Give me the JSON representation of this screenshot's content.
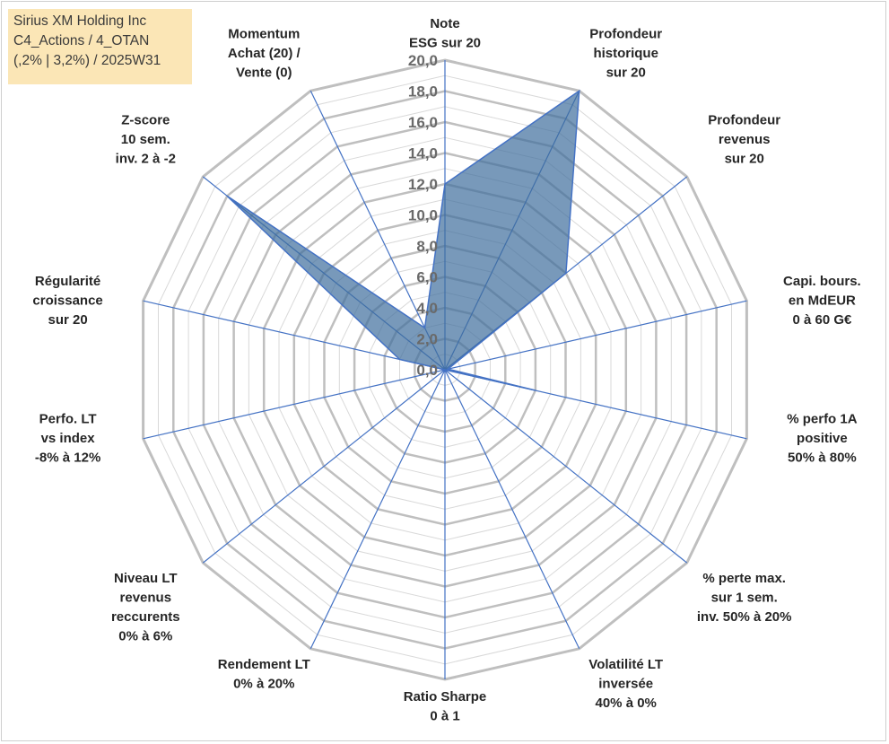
{
  "title_lines": [
    "Sirius XM Holding Inc",
    "C4_Actions / 4_OTAN",
    "(,2% | 3,2%) / 2025W31"
  ],
  "chart_data": {
    "type": "radar",
    "title": "Sirius XM Holding Inc",
    "rmin": 0,
    "rmax": 20,
    "tick_step": 2,
    "grid": true,
    "tick_labels": [
      "0,0",
      "2,0",
      "4,0",
      "6,0",
      "8,0",
      "10,0",
      "12,0",
      "14,0",
      "16,0",
      "18,0",
      "20,0"
    ],
    "axes": [
      {
        "label": [
          "Note",
          "ESG sur 20"
        ],
        "value": 12.0
      },
      {
        "label": [
          "Profondeur",
          "historique",
          "sur 20"
        ],
        "value": 20.0
      },
      {
        "label": [
          "Profondeur",
          "revenus",
          "sur 20"
        ],
        "value": 10.0
      },
      {
        "label": [
          "Capi. bours.",
          "en MdEUR",
          "0 à 60 G€"
        ],
        "value": 0.2
      },
      {
        "label": [
          "% perfo 1A",
          "positive",
          "50% à 80%"
        ],
        "value": 6.0
      },
      {
        "label": [
          "% perte max.",
          "sur 1 sem.",
          "inv. 50% à 20%"
        ],
        "value": 0.0
      },
      {
        "label": [
          "Volatilité LT",
          "inversée",
          "40% à 0%"
        ],
        "value": 0.0
      },
      {
        "label": [
          "Ratio Sharpe",
          "0 à 1"
        ],
        "value": 0.0
      },
      {
        "label": [
          "Rendement LT",
          "0% à 20%"
        ],
        "value": 0.0
      },
      {
        "label": [
          "Niveau LT",
          "revenus",
          "reccurents",
          "0% à 6%"
        ],
        "value": 0.0
      },
      {
        "label": [
          "Perfo. LT",
          "vs index",
          "-8% à 12%"
        ],
        "value": 0.0
      },
      {
        "label": [
          "Régularité",
          "croissance",
          "sur 20"
        ],
        "value": 3.0
      },
      {
        "label": [
          "Z-score",
          "10 sem.",
          "inv. 2 à -2"
        ],
        "value": 18.0
      },
      {
        "label": [
          "Momentum",
          "Achat (20) /",
          "Vente (0)"
        ],
        "value": 3.0
      }
    ],
    "colors": {
      "fill": "#3e6d9c",
      "fill_opacity": 0.7,
      "stroke": "#4472c4",
      "spoke": "#4472c4",
      "grid_major": "#bfbfbf",
      "grid_minor": "#d9d9d9",
      "title_box": "#fbe6b6"
    }
  }
}
